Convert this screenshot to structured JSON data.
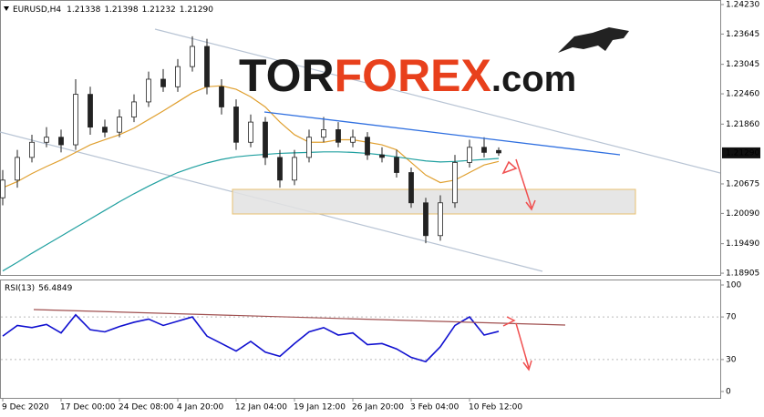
{
  "logo": {
    "parts": [
      "TOR",
      "FOREX",
      ".com"
    ]
  },
  "chart_data": [
    {
      "type": "candlestick",
      "title": "EURUSD,H4",
      "color": "#222222",
      "up_fill": "#ffffff",
      "categories": [
        "9 Dec 2020",
        null,
        null,
        null,
        "17 Dec 00:00",
        null,
        null,
        null,
        "24 Dec 08:00",
        null,
        null,
        null,
        "4 Jan 20:00",
        null,
        null,
        null,
        "12 Jan 04:00",
        null,
        null,
        null,
        "19 Jan 12:00",
        null,
        null,
        null,
        "26 Jan 20:00",
        null,
        null,
        null,
        "3 Feb 04:00",
        null,
        null,
        null,
        "10 Feb 12:00",
        null,
        null
      ],
      "open": [
        1.204,
        1.2075,
        1.212,
        1.215,
        1.216,
        1.2145,
        1.2245,
        1.218,
        1.217,
        1.22,
        1.223,
        1.2275,
        1.226,
        1.23,
        1.234,
        1.226,
        1.222,
        1.215,
        1.219,
        1.212,
        1.2075,
        1.212,
        1.216,
        1.2175,
        1.215,
        1.216,
        1.2125,
        1.212,
        1.209,
        1.203,
        1.1965,
        1.203,
        1.211,
        1.214,
        1.21338
      ],
      "high": [
        1.2095,
        1.2135,
        1.2165,
        1.218,
        1.2175,
        1.2275,
        1.226,
        1.2195,
        1.2215,
        1.2245,
        1.229,
        1.2295,
        1.2315,
        1.236,
        1.2355,
        1.2275,
        1.2235,
        1.2205,
        1.22,
        1.2135,
        1.2135,
        1.2175,
        1.22,
        1.219,
        1.2175,
        1.217,
        1.214,
        1.2135,
        1.21,
        1.204,
        1.2045,
        1.2125,
        1.2155,
        1.216,
        1.21398
      ],
      "low": [
        1.2025,
        1.206,
        1.211,
        1.214,
        1.213,
        1.2135,
        1.2165,
        1.216,
        1.216,
        1.219,
        1.222,
        1.225,
        1.225,
        1.229,
        1.2245,
        1.2205,
        1.2135,
        1.214,
        1.2105,
        1.206,
        1.2065,
        1.211,
        1.215,
        1.214,
        1.214,
        1.2115,
        1.211,
        1.208,
        1.202,
        1.195,
        1.1955,
        1.202,
        1.21,
        1.212,
        1.21232
      ],
      "close": [
        1.2075,
        1.212,
        1.215,
        1.216,
        1.2145,
        1.2245,
        1.218,
        1.217,
        1.22,
        1.223,
        1.2275,
        1.226,
        1.23,
        1.234,
        1.226,
        1.222,
        1.215,
        1.219,
        1.212,
        1.2075,
        1.212,
        1.216,
        1.2175,
        1.215,
        1.216,
        1.2125,
        1.212,
        1.209,
        1.203,
        1.1965,
        1.203,
        1.211,
        1.214,
        1.213,
        1.2129
      ],
      "last_price_label": "1.21290",
      "series": [
        {
          "color": "#e0a030",
          "values": [
            1.206,
            1.2072,
            1.2088,
            1.2102,
            1.2115,
            1.213,
            1.2145,
            1.2155,
            1.2165,
            1.2178,
            1.2195,
            1.2212,
            1.223,
            1.2248,
            1.226,
            1.2262,
            1.2255,
            1.224,
            1.222,
            1.219,
            1.2165,
            1.215,
            1.215,
            1.2155,
            1.2155,
            1.215,
            1.2145,
            1.2135,
            1.211,
            1.2085,
            1.207,
            1.2075,
            1.209,
            1.2105,
            1.2112
          ]
        },
        {
          "color": "#20a0a0",
          "values": [
            1.1895,
            1.1912,
            1.193,
            1.1947,
            1.1964,
            1.1981,
            1.1998,
            1.2015,
            1.2032,
            1.2048,
            1.2063,
            1.2077,
            1.209,
            1.21,
            1.2109,
            1.2116,
            1.2121,
            1.2124,
            1.2126,
            1.2128,
            1.2129,
            1.213,
            1.2131,
            1.2131,
            1.213,
            1.2128,
            1.2125,
            1.2121,
            1.2117,
            1.2113,
            1.2111,
            1.2112,
            1.2114,
            1.2116,
            1.2118
          ]
        }
      ],
      "ylim": [
        1.1887,
        1.2432
      ],
      "yticks": [
        {
          "value": 1.2423,
          "label": "1.24230"
        },
        1.23645,
        1.23045,
        {
          "value": 1.2246,
          "label": "1.22460"
        },
        {
          "value": 1.2186,
          "label": "1.21860"
        },
        1.20675,
        {
          "value": 1.2009,
          "label": "1.20090"
        },
        {
          "value": 1.1949,
          "label": "1.19490"
        },
        1.18905
      ]
    },
    {
      "type": "line",
      "title": "RSI(13)",
      "color": "#1010d0",
      "values": [
        52,
        62,
        60,
        63,
        55,
        72,
        58,
        56,
        61,
        65,
        68,
        62,
        66,
        70,
        52,
        45,
        38,
        47,
        37,
        33,
        45,
        56,
        60,
        53,
        55,
        44,
        45,
        40,
        32,
        28,
        42,
        62,
        70,
        53,
        56.4849
      ],
      "ylim": [
        0,
        100
      ],
      "yticks": [
        100,
        70,
        30,
        0
      ]
    }
  ]
}
